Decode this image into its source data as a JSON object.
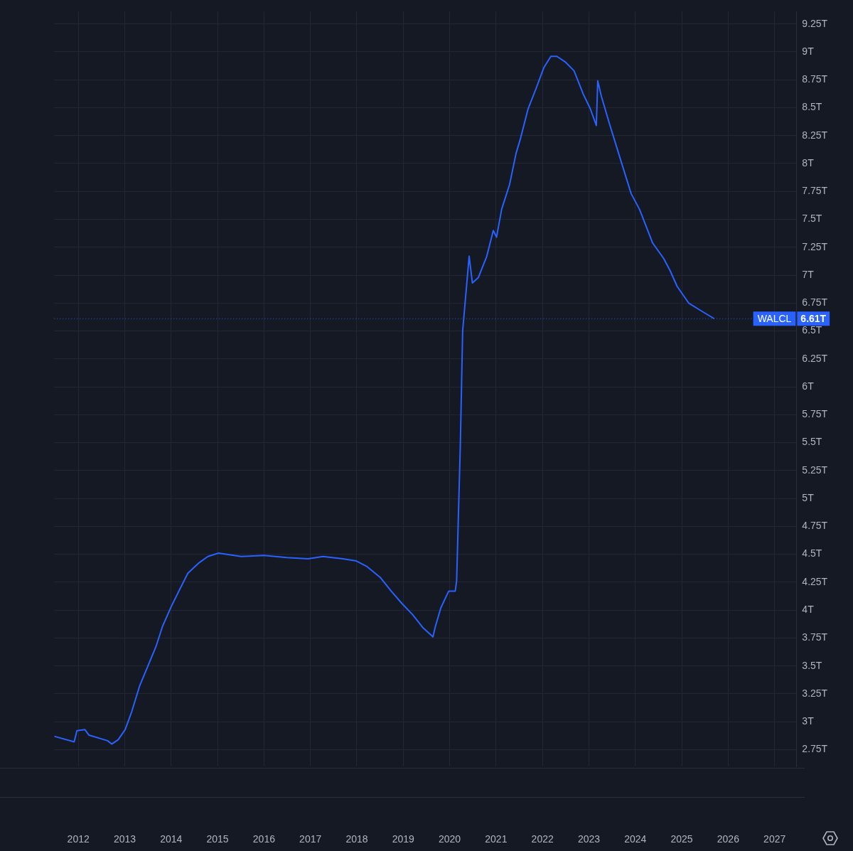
{
  "chart_data": {
    "type": "line",
    "x": [
      2011.48,
      2011.91,
      2011.97,
      2012.14,
      2012.23,
      2012.63,
      2012.72,
      2012.86,
      2013.01,
      2013.15,
      2013.32,
      2013.5,
      2013.67,
      2013.81,
      2014.0,
      2014.19,
      2014.36,
      2014.59,
      2014.79,
      2015.02,
      2015.51,
      2016.0,
      2016.49,
      2016.95,
      2017.27,
      2017.7,
      2017.99,
      2018.22,
      2018.51,
      2018.74,
      2018.97,
      2019.2,
      2019.43,
      2019.64,
      2019.69,
      2019.81,
      2019.98,
      2020.12,
      2020.15,
      2020.23,
      2020.28,
      2020.42,
      2020.49,
      2020.62,
      2020.8,
      2020.94,
      2021.01,
      2021.12,
      2021.29,
      2021.43,
      2021.53,
      2021.69,
      2021.86,
      2022.03,
      2022.18,
      2022.31,
      2022.49,
      2022.68,
      2022.88,
      2023.03,
      2023.16,
      2023.19,
      2023.27,
      2023.44,
      2023.67,
      2023.91,
      2024.09,
      2024.37,
      2024.61,
      2024.75,
      2024.9,
      2025.15,
      2025.42,
      2025.7
    ],
    "series": [
      {
        "name": "WALCL",
        "color": "#2962ff",
        "values": [
          2.87,
          2.82,
          2.92,
          2.93,
          2.88,
          2.83,
          2.8,
          2.84,
          2.93,
          3.09,
          3.32,
          3.5,
          3.67,
          3.85,
          4.03,
          4.19,
          4.33,
          4.42,
          4.48,
          4.51,
          4.48,
          4.49,
          4.47,
          4.46,
          4.48,
          4.46,
          4.44,
          4.39,
          4.29,
          4.17,
          4.06,
          3.96,
          3.84,
          3.76,
          3.85,
          4.02,
          4.17,
          4.17,
          4.26,
          5.48,
          6.5,
          7.17,
          6.93,
          6.98,
          7.17,
          7.4,
          7.34,
          7.59,
          7.81,
          8.09,
          8.23,
          8.49,
          8.67,
          8.86,
          8.96,
          8.96,
          8.91,
          8.83,
          8.62,
          8.49,
          8.34,
          8.74,
          8.6,
          8.36,
          8.05,
          7.73,
          7.59,
          7.29,
          7.15,
          7.04,
          6.9,
          6.75,
          6.68,
          6.61
        ]
      }
    ],
    "xlim": [
      2011.48,
      2027.47
    ],
    "xticks": [
      2012,
      2013,
      2014,
      2015,
      2016,
      2017,
      2018,
      2019,
      2020,
      2021,
      2022,
      2023,
      2024,
      2025,
      2026,
      2027
    ],
    "ylim": [
      2.6,
      9.36
    ],
    "yticks": [
      {
        "value": 2.75,
        "label": "2.75T"
      },
      {
        "value": 3,
        "label": "3T"
      },
      {
        "value": 3.25,
        "label": "3.25T"
      },
      {
        "value": 3.5,
        "label": "3.5T"
      },
      {
        "value": 3.75,
        "label": "3.75T"
      },
      {
        "value": 4,
        "label": "4T"
      },
      {
        "value": 4.25,
        "label": "4.25T"
      },
      {
        "value": 4.5,
        "label": "4.5T"
      },
      {
        "value": 4.75,
        "label": "4.75T"
      },
      {
        "value": 5,
        "label": "5T"
      },
      {
        "value": 5.25,
        "label": "5.25T"
      },
      {
        "value": 5.5,
        "label": "5.5T"
      },
      {
        "value": 5.75,
        "label": "5.75T"
      },
      {
        "value": 6,
        "label": "6T"
      },
      {
        "value": 6.25,
        "label": "6.25T"
      },
      {
        "value": 6.5,
        "label": "6.5T"
      },
      {
        "value": 6.75,
        "label": "6.75T"
      },
      {
        "value": 7,
        "label": "7T"
      },
      {
        "value": 7.25,
        "label": "7.25T"
      },
      {
        "value": 7.5,
        "label": "7.5T"
      },
      {
        "value": 7.75,
        "label": "7.75T"
      },
      {
        "value": 8,
        "label": "8T"
      },
      {
        "value": 8.25,
        "label": "8.25T"
      },
      {
        "value": 8.5,
        "label": "8.5T"
      },
      {
        "value": 8.75,
        "label": "8.75T"
      },
      {
        "value": 9,
        "label": "9T"
      },
      {
        "value": 9.25,
        "label": "9.25T"
      }
    ],
    "grid": true,
    "ref_lines": [
      {
        "axis": "y",
        "value": 6.61,
        "label": "6.61T",
        "color": "#2962ff",
        "line_style": "dotted"
      }
    ]
  }
}
